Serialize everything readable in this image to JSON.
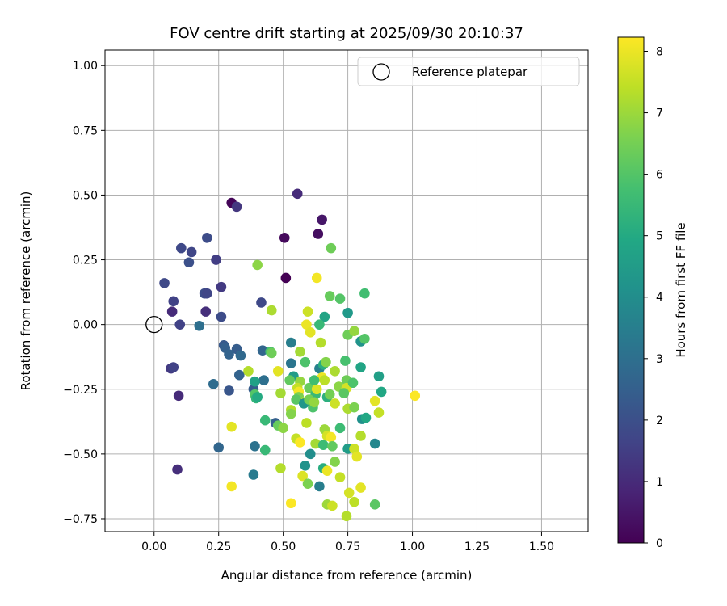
{
  "chart_data": {
    "type": "scatter",
    "title": "FOV centre drift starting at 2025/09/30 20:10:37",
    "xlabel": "Angular distance from reference (arcmin)",
    "ylabel": "Rotation from reference (arcmin)",
    "xlim": [
      -0.19,
      1.68
    ],
    "ylim": [
      -0.8,
      1.06
    ],
    "xticks": [
      0.0,
      0.25,
      0.5,
      0.75,
      1.0,
      1.25,
      1.5
    ],
    "xtick_labels": [
      "0.00",
      "0.25",
      "0.50",
      "0.75",
      "1.00",
      "1.25",
      "1.50"
    ],
    "yticks": [
      1.0,
      0.75,
      0.5,
      0.25,
      0.0,
      -0.25,
      -0.5,
      -0.75
    ],
    "ytick_labels": [
      "1.00",
      "0.75",
      "0.50",
      "0.25",
      "0.00",
      "−0.25",
      "−0.50",
      "−0.75"
    ],
    "grid": true,
    "legend": {
      "position": "top-right",
      "entries": [
        "Reference platepar"
      ]
    },
    "reference_point": {
      "x": 0.0,
      "y": 0.0,
      "label": "Reference platepar"
    },
    "colorbar": {
      "label": "Hours from first FF file",
      "range": [
        0,
        8.23
      ],
      "ticks": [
        0,
        1,
        2,
        3,
        4,
        5,
        6,
        7,
        8
      ],
      "tick_labels": [
        "0",
        "1",
        "2",
        "3",
        "4",
        "5",
        "6",
        "7",
        "8"
      ],
      "colormap": "viridis"
    },
    "points": [
      {
        "x": 0.3,
        "y": 0.47,
        "h": 0.1
      },
      {
        "x": 0.32,
        "y": 0.455,
        "h": 1.3
      },
      {
        "x": 0.555,
        "y": 0.505,
        "h": 1.0
      },
      {
        "x": 0.65,
        "y": 0.405,
        "h": 0.5
      },
      {
        "x": 0.505,
        "y": 0.335,
        "h": 0.2
      },
      {
        "x": 0.635,
        "y": 0.35,
        "h": 0.3
      },
      {
        "x": 0.51,
        "y": 0.18,
        "h": 0.0
      },
      {
        "x": 0.105,
        "y": 0.295,
        "h": 1.8
      },
      {
        "x": 0.205,
        "y": 0.335,
        "h": 1.9
      },
      {
        "x": 0.145,
        "y": 0.28,
        "h": 1.7
      },
      {
        "x": 0.135,
        "y": 0.24,
        "h": 2.0
      },
      {
        "x": 0.24,
        "y": 0.25,
        "h": 1.5
      },
      {
        "x": 0.04,
        "y": 0.16,
        "h": 1.8
      },
      {
        "x": 0.26,
        "y": 0.145,
        "h": 1.4
      },
      {
        "x": 0.195,
        "y": 0.12,
        "h": 1.9
      },
      {
        "x": 0.205,
        "y": 0.12,
        "h": 1.7
      },
      {
        "x": 0.075,
        "y": 0.09,
        "h": 1.6
      },
      {
        "x": 0.07,
        "y": 0.05,
        "h": 1.0
      },
      {
        "x": 0.2,
        "y": 0.05,
        "h": 1.1
      },
      {
        "x": 0.26,
        "y": 0.03,
        "h": 1.9
      },
      {
        "x": 0.1,
        "y": 0.0,
        "h": 1.6
      },
      {
        "x": 0.175,
        "y": -0.005,
        "h": 3.0
      },
      {
        "x": 0.415,
        "y": 0.085,
        "h": 1.8
      },
      {
        "x": 0.065,
        "y": -0.17,
        "h": 1.4
      },
      {
        "x": 0.075,
        "y": -0.165,
        "h": 1.6
      },
      {
        "x": 0.095,
        "y": -0.275,
        "h": 1.0
      },
      {
        "x": 0.09,
        "y": -0.56,
        "h": 1.1
      },
      {
        "x": 0.27,
        "y": -0.08,
        "h": 2.3
      },
      {
        "x": 0.275,
        "y": -0.09,
        "h": 2.5
      },
      {
        "x": 0.32,
        "y": -0.095,
        "h": 2.4
      },
      {
        "x": 0.29,
        "y": -0.115,
        "h": 2.6
      },
      {
        "x": 0.335,
        "y": -0.12,
        "h": 2.8
      },
      {
        "x": 0.42,
        "y": -0.1,
        "h": 2.7
      },
      {
        "x": 0.33,
        "y": -0.195,
        "h": 2.6
      },
      {
        "x": 0.23,
        "y": -0.23,
        "h": 2.9
      },
      {
        "x": 0.385,
        "y": -0.25,
        "h": 2.4
      },
      {
        "x": 0.29,
        "y": -0.255,
        "h": 2.2
      },
      {
        "x": 0.425,
        "y": -0.215,
        "h": 3.0
      },
      {
        "x": 0.25,
        "y": -0.475,
        "h": 2.7
      },
      {
        "x": 0.39,
        "y": -0.47,
        "h": 3.1
      },
      {
        "x": 0.385,
        "y": -0.58,
        "h": 3.4
      },
      {
        "x": 0.47,
        "y": -0.38,
        "h": 2.5
      },
      {
        "x": 0.4,
        "y": 0.23,
        "h": 6.8
      },
      {
        "x": 0.455,
        "y": 0.055,
        "h": 7.2
      },
      {
        "x": 0.63,
        "y": 0.18,
        "h": 8.1
      },
      {
        "x": 0.685,
        "y": 0.295,
        "h": 6.4
      },
      {
        "x": 0.68,
        "y": 0.11,
        "h": 6.3
      },
      {
        "x": 0.72,
        "y": 0.1,
        "h": 6.0
      },
      {
        "x": 0.815,
        "y": 0.12,
        "h": 5.7
      },
      {
        "x": 0.595,
        "y": 0.05,
        "h": 7.6
      },
      {
        "x": 0.66,
        "y": 0.03,
        "h": 4.8
      },
      {
        "x": 0.75,
        "y": 0.045,
        "h": 4.4
      },
      {
        "x": 0.59,
        "y": 0.0,
        "h": 8.0
      },
      {
        "x": 0.605,
        "y": -0.03,
        "h": 7.9
      },
      {
        "x": 0.64,
        "y": 0.0,
        "h": 5.5
      },
      {
        "x": 0.75,
        "y": -0.04,
        "h": 6.4
      },
      {
        "x": 0.775,
        "y": -0.025,
        "h": 6.9
      },
      {
        "x": 0.8,
        "y": -0.065,
        "h": 4.2
      },
      {
        "x": 0.815,
        "y": -0.055,
        "h": 6.0
      },
      {
        "x": 0.45,
        "y": -0.105,
        "h": 5.8
      },
      {
        "x": 0.53,
        "y": -0.07,
        "h": 3.5
      },
      {
        "x": 0.565,
        "y": -0.105,
        "h": 7.1
      },
      {
        "x": 0.585,
        "y": -0.145,
        "h": 5.9
      },
      {
        "x": 0.645,
        "y": -0.07,
        "h": 7.3
      },
      {
        "x": 0.64,
        "y": -0.17,
        "h": 3.6
      },
      {
        "x": 0.655,
        "y": -0.155,
        "h": 5.1
      },
      {
        "x": 0.665,
        "y": -0.145,
        "h": 6.7
      },
      {
        "x": 0.74,
        "y": -0.14,
        "h": 5.8
      },
      {
        "x": 0.8,
        "y": -0.165,
        "h": 4.8
      },
      {
        "x": 0.7,
        "y": -0.18,
        "h": 7.2
      },
      {
        "x": 0.365,
        "y": -0.18,
        "h": 7.3
      },
      {
        "x": 0.48,
        "y": -0.18,
        "h": 7.9
      },
      {
        "x": 0.53,
        "y": -0.15,
        "h": 3.2
      },
      {
        "x": 0.54,
        "y": -0.2,
        "h": 4.5
      },
      {
        "x": 0.525,
        "y": -0.215,
        "h": 6.2
      },
      {
        "x": 0.565,
        "y": -0.22,
        "h": 6.9
      },
      {
        "x": 0.555,
        "y": -0.245,
        "h": 7.5
      },
      {
        "x": 0.56,
        "y": -0.26,
        "h": 8.1
      },
      {
        "x": 0.56,
        "y": -0.28,
        "h": 6.6
      },
      {
        "x": 0.58,
        "y": -0.3,
        "h": 7.7
      },
      {
        "x": 0.55,
        "y": -0.29,
        "h": 6.1
      },
      {
        "x": 0.6,
        "y": -0.245,
        "h": 6.3
      },
      {
        "x": 0.625,
        "y": -0.27,
        "h": 5.5
      },
      {
        "x": 0.63,
        "y": -0.25,
        "h": 7.8
      },
      {
        "x": 0.65,
        "y": -0.205,
        "h": 8.0
      },
      {
        "x": 0.66,
        "y": -0.215,
        "h": 7.4
      },
      {
        "x": 0.67,
        "y": -0.28,
        "h": 5.2
      },
      {
        "x": 0.68,
        "y": -0.27,
        "h": 6.5
      },
      {
        "x": 0.7,
        "y": -0.305,
        "h": 7.6
      },
      {
        "x": 0.715,
        "y": -0.24,
        "h": 6.8
      },
      {
        "x": 0.745,
        "y": -0.215,
        "h": 6.4
      },
      {
        "x": 0.745,
        "y": -0.245,
        "h": 7.7
      },
      {
        "x": 0.75,
        "y": -0.325,
        "h": 7.2
      },
      {
        "x": 0.77,
        "y": -0.225,
        "h": 5.9
      },
      {
        "x": 0.775,
        "y": -0.32,
        "h": 6.6
      },
      {
        "x": 0.87,
        "y": -0.2,
        "h": 4.6
      },
      {
        "x": 0.88,
        "y": -0.26,
        "h": 4.9
      },
      {
        "x": 0.855,
        "y": -0.295,
        "h": 7.9
      },
      {
        "x": 0.87,
        "y": -0.34,
        "h": 7.5
      },
      {
        "x": 0.805,
        "y": -0.365,
        "h": 4.1
      },
      {
        "x": 0.72,
        "y": -0.4,
        "h": 5.6
      },
      {
        "x": 1.01,
        "y": -0.275,
        "h": 8.2
      },
      {
        "x": 0.39,
        "y": -0.22,
        "h": 4.7
      },
      {
        "x": 0.39,
        "y": -0.27,
        "h": 6.0
      },
      {
        "x": 0.395,
        "y": -0.285,
        "h": 5.4
      },
      {
        "x": 0.49,
        "y": -0.265,
        "h": 7.1
      },
      {
        "x": 0.53,
        "y": -0.33,
        "h": 7.3
      },
      {
        "x": 0.53,
        "y": -0.345,
        "h": 6.7
      },
      {
        "x": 0.43,
        "y": -0.37,
        "h": 5.5
      },
      {
        "x": 0.48,
        "y": -0.39,
        "h": 6.3
      },
      {
        "x": 0.5,
        "y": -0.4,
        "h": 6.8
      },
      {
        "x": 0.59,
        "y": -0.38,
        "h": 7.4
      },
      {
        "x": 0.58,
        "y": -0.305,
        "h": 4.3
      },
      {
        "x": 0.6,
        "y": -0.29,
        "h": 6.5
      },
      {
        "x": 0.615,
        "y": -0.32,
        "h": 5.9
      },
      {
        "x": 0.62,
        "y": -0.3,
        "h": 6.9
      },
      {
        "x": 0.55,
        "y": -0.44,
        "h": 7.5
      },
      {
        "x": 0.565,
        "y": -0.455,
        "h": 8.2
      },
      {
        "x": 0.625,
        "y": -0.46,
        "h": 7.1
      },
      {
        "x": 0.655,
        "y": -0.465,
        "h": 5.6
      },
      {
        "x": 0.66,
        "y": -0.405,
        "h": 7.0
      },
      {
        "x": 0.67,
        "y": -0.43,
        "h": 7.7
      },
      {
        "x": 0.685,
        "y": -0.435,
        "h": 8.1
      },
      {
        "x": 0.69,
        "y": -0.47,
        "h": 6.2
      },
      {
        "x": 0.7,
        "y": -0.53,
        "h": 6.7
      },
      {
        "x": 0.75,
        "y": -0.48,
        "h": 4.5
      },
      {
        "x": 0.775,
        "y": -0.48,
        "h": 7.6
      },
      {
        "x": 0.785,
        "y": -0.51,
        "h": 7.9
      },
      {
        "x": 0.8,
        "y": -0.43,
        "h": 7.3
      },
      {
        "x": 0.82,
        "y": -0.36,
        "h": 4.9
      },
      {
        "x": 0.855,
        "y": -0.46,
        "h": 3.8
      },
      {
        "x": 0.43,
        "y": -0.485,
        "h": 5.5
      },
      {
        "x": 0.49,
        "y": -0.555,
        "h": 7.3
      },
      {
        "x": 0.575,
        "y": -0.585,
        "h": 7.8
      },
      {
        "x": 0.585,
        "y": -0.545,
        "h": 4.2
      },
      {
        "x": 0.595,
        "y": -0.615,
        "h": 6.6
      },
      {
        "x": 0.605,
        "y": -0.5,
        "h": 4.0
      },
      {
        "x": 0.64,
        "y": -0.625,
        "h": 3.5
      },
      {
        "x": 0.655,
        "y": -0.555,
        "h": 5.1
      },
      {
        "x": 0.67,
        "y": -0.565,
        "h": 8.0
      },
      {
        "x": 0.72,
        "y": -0.59,
        "h": 7.5
      },
      {
        "x": 0.755,
        "y": -0.65,
        "h": 7.7
      },
      {
        "x": 0.775,
        "y": -0.685,
        "h": 7.4
      },
      {
        "x": 0.8,
        "y": -0.63,
        "h": 7.9
      },
      {
        "x": 0.67,
        "y": -0.695,
        "h": 7.0
      },
      {
        "x": 0.69,
        "y": -0.7,
        "h": 7.6
      },
      {
        "x": 0.745,
        "y": -0.74,
        "h": 7.3
      },
      {
        "x": 0.855,
        "y": -0.695,
        "h": 6.1
      },
      {
        "x": 0.53,
        "y": -0.69,
        "h": 8.2
      },
      {
        "x": 0.3,
        "y": -0.625,
        "h": 8.1
      },
      {
        "x": 0.3,
        "y": -0.395,
        "h": 7.9
      },
      {
        "x": 0.455,
        "y": -0.11,
        "h": 6.4
      },
      {
        "x": 0.4,
        "y": -0.28,
        "h": 5.0
      },
      {
        "x": 0.735,
        "y": -0.265,
        "h": 6.1
      },
      {
        "x": 0.62,
        "y": -0.215,
        "h": 5.7
      }
    ]
  }
}
